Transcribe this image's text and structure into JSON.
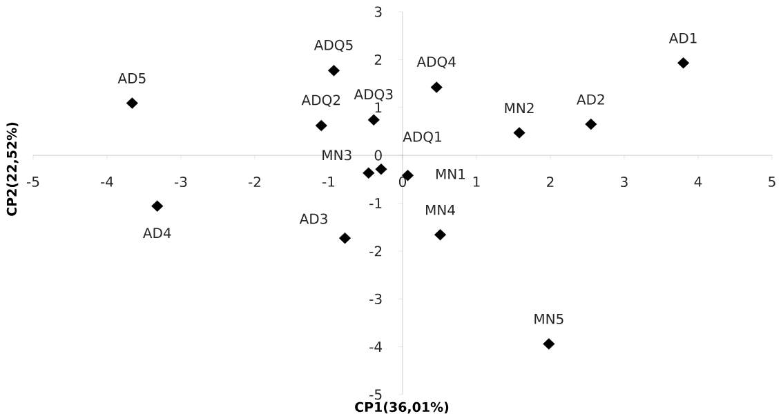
{
  "chart_data": {
    "type": "scatter",
    "xlabel": "CP1(36,01%)",
    "ylabel": "CP2(22,52%)",
    "color": "#000000",
    "marker": "diamond",
    "grid": false,
    "x": [
      3.8,
      2.55,
      -0.78,
      -3.32,
      -3.66,
      -0.29,
      -1.1,
      -0.39,
      0.46,
      -0.93,
      0.07,
      1.58,
      -0.46,
      0.51,
      1.98
    ],
    "values": [
      1.93,
      0.65,
      -1.73,
      -1.06,
      1.09,
      -0.29,
      0.62,
      0.74,
      1.42,
      1.77,
      -0.42,
      0.47,
      -0.37,
      -1.66,
      -3.94
    ],
    "xlim": [
      -5,
      5
    ],
    "ylim": [
      -5,
      3
    ],
    "xticks": [
      -5,
      -4,
      -3,
      -2,
      -1,
      0,
      1,
      2,
      3,
      4,
      5
    ],
    "yticks": [
      -5,
      -4,
      -3,
      -2,
      -1,
      0,
      1,
      2,
      3
    ],
    "annotations": [
      {
        "text": "AD1",
        "x": 3.8,
        "y": 1.93
      },
      {
        "text": "AD2",
        "x": 2.55,
        "y": 0.65
      },
      {
        "text": "AD3",
        "x": -0.78,
        "y": -1.73
      },
      {
        "text": "AD4",
        "x": -3.32,
        "y": -1.06
      },
      {
        "text": "AD5",
        "x": -3.66,
        "y": 1.09
      },
      {
        "text": "ADQ1",
        "x": -0.29,
        "y": -0.29
      },
      {
        "text": "ADQ2",
        "x": -1.1,
        "y": 0.62
      },
      {
        "text": "ADQ3",
        "x": -0.39,
        "y": 0.74
      },
      {
        "text": "ADQ4",
        "x": 0.46,
        "y": 1.42
      },
      {
        "text": "ADQ5",
        "x": -0.93,
        "y": 1.77
      },
      {
        "text": "MN1",
        "x": 0.07,
        "y": -0.42
      },
      {
        "text": "MN2",
        "x": 1.58,
        "y": 0.47
      },
      {
        "text": "MN3",
        "x": -0.46,
        "y": -0.37
      },
      {
        "text": "MN4",
        "x": 0.51,
        "y": -1.66
      },
      {
        "text": "MN5",
        "x": 1.98,
        "y": -3.94
      }
    ]
  }
}
